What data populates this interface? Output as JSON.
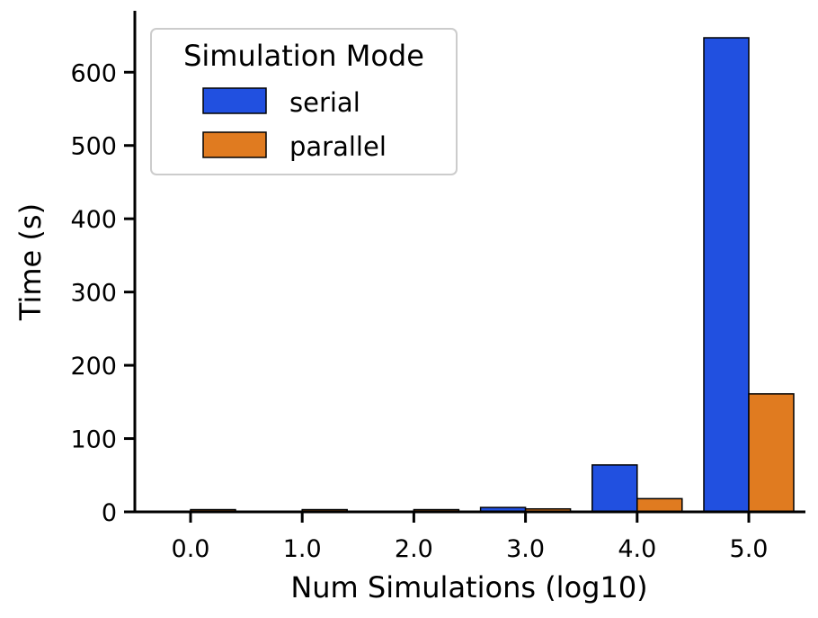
{
  "chart_data": {
    "type": "bar",
    "xlabel": "Num Simulations (log10)",
    "ylabel": "Time (s)",
    "categories": [
      "0.0",
      "1.0",
      "2.0",
      "3.0",
      "4.0",
      "5.0"
    ],
    "series": [
      {
        "name": "serial",
        "color": "#2150e0",
        "values": [
          0.3,
          0.3,
          0.5,
          6,
          64,
          647
        ]
      },
      {
        "name": "parallel",
        "color": "#e07b20",
        "values": [
          3,
          3,
          3,
          4,
          18,
          161
        ]
      }
    ],
    "yticks": [
      "0",
      "100",
      "200",
      "300",
      "400",
      "500",
      "600"
    ],
    "ylim": [
      0,
      680
    ],
    "legend": {
      "title": "Simulation Mode",
      "placement": "top-left"
    },
    "grid": false
  }
}
